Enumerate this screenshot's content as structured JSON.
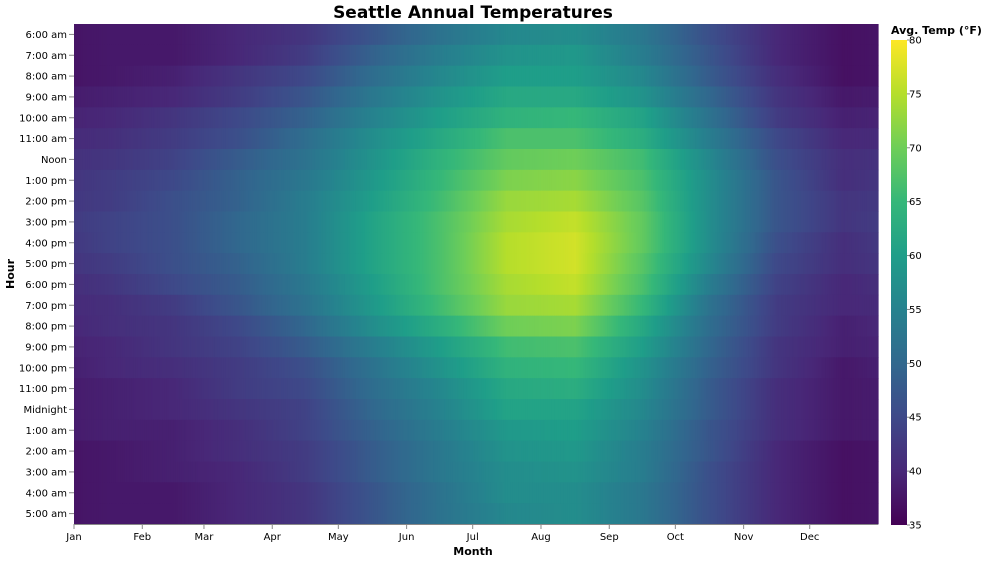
{
  "chart_data": {
    "type": "heatmap",
    "title": "Seattle Annual Temperatures",
    "xlabel": "Month",
    "ylabel": "Hour",
    "x_ticks": [
      "Jan",
      "Feb",
      "Mar",
      "Apr",
      "May",
      "Jun",
      "Jul",
      "Aug",
      "Sep",
      "Oct",
      "Nov",
      "Dec"
    ],
    "hours": [
      "6:00 am",
      "7:00 am",
      "8:00 am",
      "9:00 am",
      "10:00 am",
      "11:00 am",
      "Noon",
      "1:00 pm",
      "2:00 pm",
      "3:00 pm",
      "4:00 pm",
      "5:00 pm",
      "6:00 pm",
      "7:00 pm",
      "8:00 pm",
      "9:00 pm",
      "10:00 pm",
      "11:00 pm",
      "Midnight",
      "1:00 am",
      "2:00 am",
      "3:00 am",
      "4:00 am",
      "5:00 am"
    ],
    "monthly_avg_temp_by_hour": [
      [
        38,
        38,
        40,
        42,
        47,
        52,
        56,
        57,
        53,
        46,
        40,
        37
      ],
      [
        38,
        38,
        40,
        43,
        49,
        54,
        58,
        59,
        54,
        47,
        40,
        37
      ],
      [
        38,
        39,
        42,
        45,
        51,
        56,
        60,
        60,
        56,
        48,
        41,
        37
      ],
      [
        39,
        40,
        43,
        47,
        53,
        58,
        62,
        62,
        58,
        50,
        42,
        38
      ],
      [
        40,
        42,
        45,
        49,
        55,
        60,
        64,
        65,
        61,
        52,
        43,
        39
      ],
      [
        41,
        43,
        46,
        51,
        57,
        62,
        67,
        67,
        63,
        54,
        45,
        40
      ],
      [
        42,
        44,
        48,
        52,
        58,
        64,
        69,
        70,
        66,
        56,
        46,
        41
      ],
      [
        43,
        45,
        49,
        53,
        59,
        65,
        71,
        72,
        67,
        57,
        47,
        41
      ],
      [
        43,
        46,
        49,
        54,
        60,
        66,
        73,
        74,
        68,
        57,
        47,
        42
      ],
      [
        44,
        46,
        50,
        54,
        61,
        67,
        74,
        76,
        69,
        57,
        47,
        42
      ],
      [
        44,
        46,
        50,
        54,
        61,
        67,
        75,
        77,
        69,
        57,
        46,
        41
      ],
      [
        43,
        46,
        49,
        54,
        61,
        67,
        75,
        77,
        68,
        56,
        45,
        41
      ],
      [
        42,
        45,
        48,
        53,
        60,
        67,
        74,
        76,
        67,
        54,
        44,
        40
      ],
      [
        41,
        43,
        47,
        52,
        59,
        66,
        73,
        74,
        65,
        52,
        43,
        40
      ],
      [
        41,
        42,
        45,
        50,
        57,
        63,
        70,
        71,
        62,
        51,
        43,
        39
      ],
      [
        40,
        42,
        44,
        48,
        54,
        60,
        66,
        67,
        60,
        50,
        42,
        39
      ],
      [
        40,
        41,
        43,
        46,
        52,
        58,
        64,
        65,
        58,
        49,
        42,
        38
      ],
      [
        39,
        40,
        43,
        45,
        51,
        56,
        62,
        63,
        57,
        48,
        41,
        38
      ],
      [
        39,
        40,
        42,
        44,
        50,
        55,
        61,
        61,
        56,
        48,
        41,
        38
      ],
      [
        39,
        39,
        41,
        44,
        49,
        54,
        59,
        60,
        55,
        47,
        41,
        38
      ],
      [
        38,
        39,
        41,
        43,
        48,
        53,
        58,
        59,
        54,
        47,
        40,
        37
      ],
      [
        38,
        39,
        40,
        43,
        48,
        53,
        57,
        58,
        54,
        46,
        40,
        37
      ],
      [
        38,
        38,
        40,
        42,
        47,
        52,
        57,
        57,
        53,
        46,
        40,
        37
      ],
      [
        38,
        38,
        40,
        42,
        47,
        52,
        56,
        57,
        53,
        46,
        40,
        37
      ]
    ],
    "legend": {
      "title": "Avg. Temp (°F)",
      "ticks": [
        80,
        75,
        70,
        65,
        60,
        55,
        50,
        45,
        40,
        35
      ],
      "domain": [
        35,
        80
      ],
      "placement": "right"
    },
    "color_scheme": "viridis",
    "colors": [
      "#440154",
      "#482878",
      "#3e4989",
      "#31688e",
      "#26828e",
      "#1f9e89",
      "#35b779",
      "#6ece58",
      "#b5de2b",
      "#fde725"
    ],
    "grid": false
  }
}
